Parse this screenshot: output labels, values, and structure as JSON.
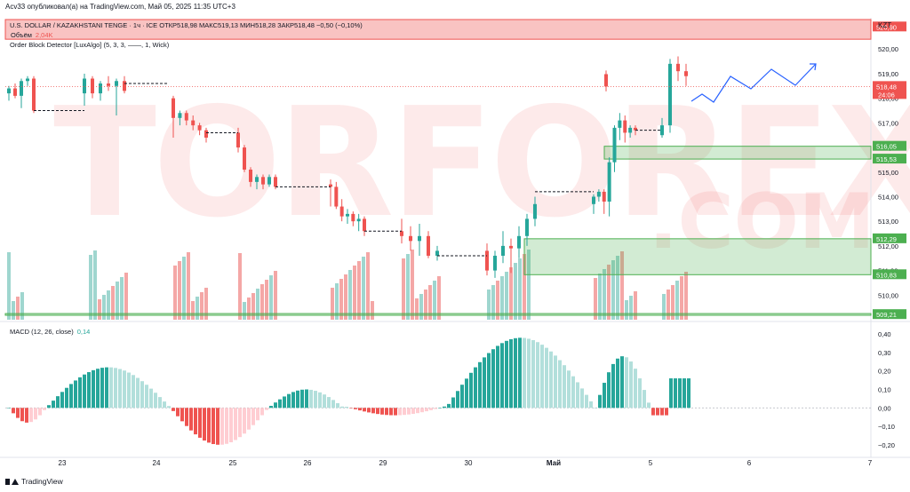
{
  "header": {
    "text": "Acv33 опубликовал(а) на TradingView.com, Май 05, 2025 11:35 UTC+3"
  },
  "symbol": {
    "text": "U.S. DOLLAR / KAZAKHSTANI TENGE · 1ч · ICE  ОТКР518,98  МАКС519,13  МИН518,28  ЗАКР518,48  −0,50 (−0,10%)"
  },
  "volume": {
    "label": "Объём",
    "value": "2,04K"
  },
  "indicator": {
    "label": "Order Block Detector [LuxAlgo] (5, 3, 3, ——, 1, Wick)"
  },
  "macd": {
    "label": "MACD (12, 26, close)",
    "value": "0,14"
  },
  "currency": "KZT",
  "watermark": {
    "main": "TORFOREX",
    "sub": ".COM"
  },
  "footer": {
    "logo": "TradingView"
  },
  "colors": {
    "up": "#26a69a",
    "down": "#ef5350",
    "upLight": "#b2dfdb",
    "downLight": "#ffcdd2",
    "volUp": "#9fd6cf",
    "volDown": "#f4a7a6",
    "zoneGreen": "#4caf50",
    "zoneRed": "#ef5350",
    "forecast": "#2962ff"
  },
  "price_axis": {
    "ticks": [
      "520,00",
      "519,00",
      "518,00",
      "517,00",
      "516,00",
      "515,00",
      "514,00",
      "513,00",
      "512,00",
      "511,00",
      "510,00"
    ],
    "labels": [
      {
        "text": "520,90",
        "type": "red"
      },
      {
        "text": "518,48",
        "type": "current",
        "sub": "24:06"
      },
      {
        "text": "516,05",
        "type": "green"
      },
      {
        "text": "515,53",
        "type": "green"
      },
      {
        "text": "512,29",
        "type": "green"
      },
      {
        "text": "510,83",
        "type": "green"
      },
      {
        "text": "509,21",
        "type": "green"
      }
    ]
  },
  "macd_axis": {
    "ticks": [
      "0,40",
      "0,30",
      "0,20",
      "0,10",
      "0,00",
      "−0,10",
      "−0,20"
    ]
  },
  "time_axis": {
    "ticks": [
      "23",
      "24",
      "25",
      "26",
      "29",
      "30",
      "Май",
      "5",
      "6",
      "7"
    ],
    "bold": [
      "Май"
    ]
  },
  "chart_data": {
    "type": "candlestick",
    "title": "U.S. DOLLAR / KAZAKHSTANI TENGE · 1ч · ICE",
    "ohlc": {
      "open": 518.98,
      "high": 519.13,
      "low": 518.28,
      "close": 518.48,
      "change": -0.5,
      "change_pct": -0.1
    },
    "ylim": [
      509.0,
      521.2
    ],
    "zones": [
      {
        "type": "bearish",
        "top": 521.2,
        "bottom": 520.4,
        "label": "520,90"
      },
      {
        "type": "bullish",
        "top": 516.05,
        "bottom": 515.53
      },
      {
        "type": "bullish",
        "top": 512.29,
        "bottom": 510.83
      },
      {
        "type": "bullish",
        "top": 509.25,
        "bottom": 509.18,
        "label": "509,21"
      }
    ],
    "candles": [
      [
        518.2,
        518.5,
        517.9,
        518.4
      ],
      [
        518.4,
        518.6,
        518.0,
        518.1
      ],
      [
        518.1,
        518.8,
        517.6,
        518.7
      ],
      [
        518.7,
        518.9,
        518.5,
        518.8
      ],
      [
        518.8,
        518.9,
        517.4,
        517.5
      ],
      [
        518.2,
        519.0,
        517.7,
        518.8
      ],
      [
        518.8,
        518.9,
        518.0,
        518.2
      ],
      [
        518.2,
        518.7,
        517.9,
        518.6
      ],
      [
        518.6,
        518.9,
        518.3,
        518.5
      ],
      [
        518.5,
        518.8,
        517.3,
        518.7
      ],
      [
        518.7,
        518.9,
        518.2,
        518.3
      ],
      [
        518.0,
        518.1,
        516.4,
        517.2
      ],
      [
        517.2,
        517.5,
        516.9,
        517.4
      ],
      [
        517.4,
        517.5,
        516.9,
        517.1
      ],
      [
        517.1,
        517.3,
        516.7,
        516.9
      ],
      [
        516.9,
        517.0,
        516.5,
        516.7
      ],
      [
        516.7,
        516.8,
        516.2,
        516.4
      ],
      [
        516.6,
        516.8,
        515.8,
        516.0
      ],
      [
        516.0,
        516.1,
        515.0,
        515.1
      ],
      [
        515.1,
        515.2,
        514.4,
        514.6
      ],
      [
        514.6,
        514.9,
        514.3,
        514.8
      ],
      [
        514.8,
        514.9,
        514.3,
        514.5
      ],
      [
        514.5,
        514.9,
        514.4,
        514.8
      ],
      [
        514.8,
        514.9,
        514.3,
        514.4
      ],
      [
        514.5,
        514.7,
        513.6,
        514.4
      ],
      [
        514.4,
        514.6,
        513.5,
        513.6
      ],
      [
        513.6,
        513.9,
        513.0,
        513.2
      ],
      [
        513.2,
        513.5,
        512.9,
        513.3
      ],
      [
        513.3,
        513.4,
        512.8,
        513.0
      ],
      [
        513.0,
        513.3,
        512.6,
        513.1
      ],
      [
        513.1,
        513.2,
        512.4,
        512.6
      ],
      [
        512.6,
        513.1,
        512.1,
        512.4
      ],
      [
        512.4,
        512.8,
        511.8,
        512.2
      ],
      [
        512.2,
        512.9,
        511.6,
        512.4
      ],
      [
        512.4,
        512.6,
        511.5,
        511.6
      ],
      [
        511.6,
        512.0,
        511.4,
        511.8
      ],
      [
        511.8,
        512.1,
        510.8,
        511.0
      ],
      [
        511.0,
        511.8,
        510.7,
        511.6
      ],
      [
        511.6,
        512.6,
        511.3,
        512.0
      ],
      [
        512.0,
        512.3,
        510.9,
        511.9
      ],
      [
        511.9,
        512.8,
        511.5,
        512.4
      ],
      [
        512.4,
        513.3,
        512.0,
        513.1
      ],
      [
        513.1,
        514.0,
        512.8,
        513.7
      ],
      [
        513.7,
        514.1,
        513.3,
        514.0
      ],
      [
        514.0,
        514.3,
        513.8,
        514.2
      ],
      [
        514.2,
        514.3,
        513.3,
        513.8
      ],
      [
        513.8,
        515.6,
        513.2,
        515.4
      ],
      [
        515.4,
        516.9,
        515.0,
        516.8
      ],
      [
        516.8,
        517.4,
        516.3,
        517.1
      ],
      [
        517.1,
        517.3,
        516.2,
        516.6
      ],
      [
        516.6,
        516.9,
        516.4,
        516.8
      ],
      [
        516.8,
        516.9,
        516.5,
        516.7
      ],
      [
        516.5,
        517.2,
        516.4,
        516.9
      ],
      [
        516.9,
        519.6,
        516.6,
        519.4
      ],
      [
        519.4,
        519.7,
        518.7,
        519.1
      ],
      [
        519.1,
        519.4,
        518.5,
        518.9
      ],
      [
        518.98,
        519.13,
        518.28,
        518.48
      ]
    ]
  }
}
